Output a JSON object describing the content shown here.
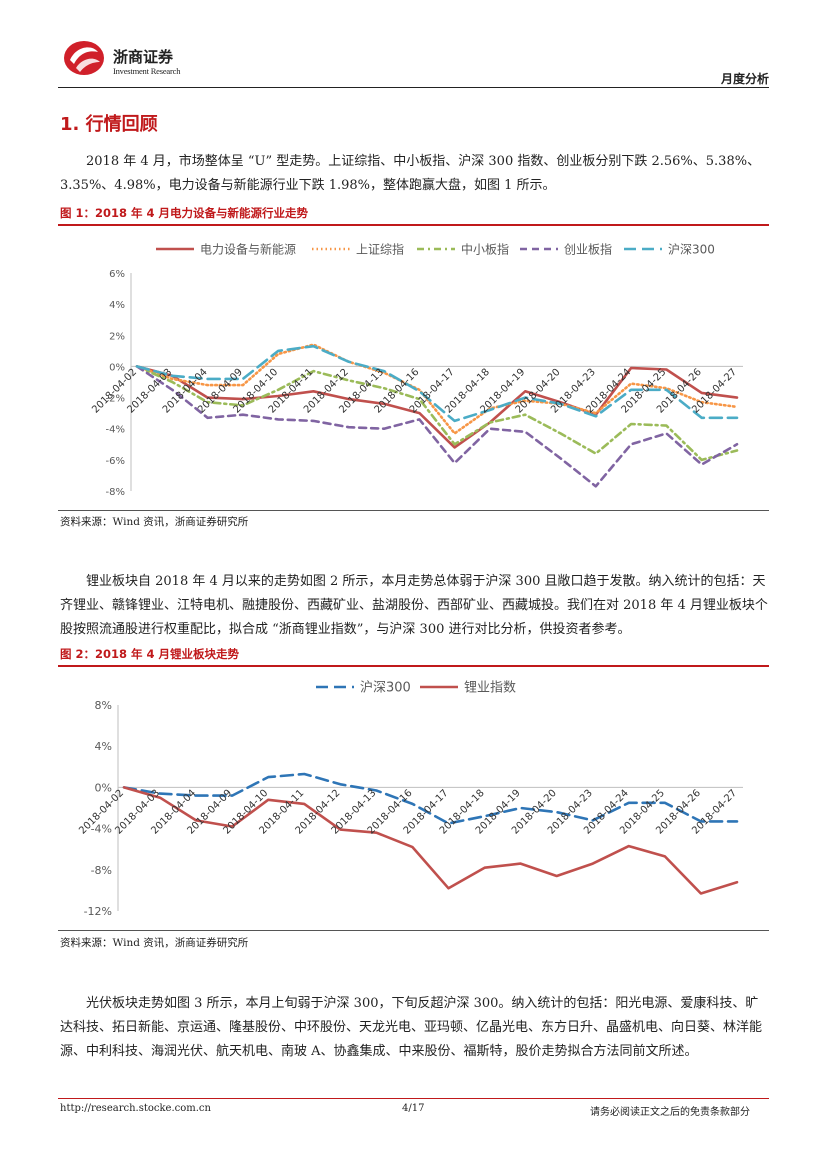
{
  "header": {
    "brand_cn": "浙商证券",
    "brand_en": "Investment Research",
    "report_type": "月度分析"
  },
  "section": {
    "title": "1. 行情回顾"
  },
  "paragraphs": {
    "p1": "2018 年 4 月，市场整体呈 “U” 型走势。上证综指、中小板指、沪深 300 指数、创业板分别下跌 2.56%、5.38%、3.35%、4.98%，电力设备与新能源行业下跌 1.98%，整体跑赢大盘，如图 1 所示。",
    "p2": "锂业板块自 2018 年 4 月以来的走势如图 2 所示，本月走势总体弱于沪深 300 且敞口趋于发散。纳入统计的包括：天齐锂业、赣锋锂业、江特电机、融捷股份、西藏矿业、盐湖股份、西部矿业、西藏城投。我们在对 2018 年 4 月锂业板块个股按照流通股进行权重配比，拟合成 “浙商锂业指数”，与沪深 300 进行对比分析，供投资者参考。",
    "p3": "光伏板块走势如图 3 所示，本月上旬弱于沪深 300，下旬反超沪深 300。纳入统计的包括：阳光电源、爱康科技、旷达科技、拓日新能、京运通、隆基股份、中环股份、天龙光电、亚玛顿、亿晶光电、东方日升、晶盛机电、向日葵、林洋能源、中利科技、海润光伏、航天机电、南玻 A、协鑫集成、中来股份、福斯特，股价走势拟合方法同前文所述。"
  },
  "figures": {
    "fig1": {
      "title": "图 1：2018 年 4 月电力设备与新能源行业走势",
      "source": "资料来源：Wind 资讯，浙商证券研究所"
    },
    "fig2": {
      "title": "图 2：2018 年 4 月锂业板块走势",
      "source": "资料来源：Wind 资讯，浙商证券研究所"
    }
  },
  "chart_data": [
    {
      "type": "line",
      "x": [
        "2018-04-02",
        "2018-04-03",
        "2018-04-04",
        "2018-04-09",
        "2018-04-10",
        "2018-04-11",
        "2018-04-12",
        "2018-04-13",
        "2018-04-16",
        "2018-04-17",
        "2018-04-18",
        "2018-04-19",
        "2018-04-20",
        "2018-04-23",
        "2018-04-24",
        "2018-04-25",
        "2018-04-26",
        "2018-04-27"
      ],
      "y_ticks": [
        "6%",
        "4%",
        "2%",
        "0%",
        "-2%",
        "-4%",
        "-6%",
        "-8%"
      ],
      "ylim": [
        -8,
        6
      ],
      "grid": false,
      "legend": "top",
      "series": [
        {
          "name": "电力设备与新能源",
          "color": "#c0504d",
          "dash": "solid",
          "values": [
            0,
            -0.6,
            -2.0,
            -2.1,
            -1.9,
            -1.6,
            -2.1,
            -2.4,
            -3.0,
            -5.2,
            -3.6,
            -1.6,
            -2.3,
            -3.1,
            -0.1,
            -0.2,
            -1.7,
            -2.0
          ]
        },
        {
          "name": "上证综指",
          "color": "#f79646",
          "dash": "dot",
          "values": [
            0,
            -0.8,
            -1.2,
            -1.2,
            0.8,
            1.4,
            0.3,
            -0.4,
            -1.5,
            -4.3,
            -2.7,
            -2.2,
            -2.4,
            -3.0,
            -1.1,
            -1.4,
            -2.3,
            -2.6
          ]
        },
        {
          "name": "中小板指",
          "color": "#9bbb59",
          "dash": "dashdot",
          "values": [
            0,
            -1.0,
            -2.3,
            -2.5,
            -1.5,
            -0.3,
            -0.9,
            -1.4,
            -2.1,
            -5.0,
            -3.6,
            -3.1,
            -4.3,
            -5.6,
            -3.7,
            -3.8,
            -6.0,
            -5.4
          ]
        },
        {
          "name": "创业板指",
          "color": "#8064a2",
          "dash": "dash",
          "values": [
            0,
            -1.5,
            -3.3,
            -3.1,
            -3.4,
            -3.5,
            -3.9,
            -4.0,
            -3.4,
            -6.2,
            -4.0,
            -4.2,
            -5.9,
            -7.7,
            -5.0,
            -4.3,
            -6.3,
            -5.0
          ]
        },
        {
          "name": "沪深300",
          "color": "#4bacc6",
          "dash": "longdash",
          "values": [
            0,
            -0.6,
            -0.8,
            -0.8,
            1.0,
            1.3,
            0.3,
            -0.3,
            -1.6,
            -3.5,
            -2.8,
            -2.0,
            -2.4,
            -3.2,
            -1.5,
            -1.5,
            -3.3,
            -3.3
          ]
        }
      ]
    },
    {
      "type": "line",
      "x": [
        "2018-04-02",
        "2018-04-03",
        "2018-04-04",
        "2018-04-09",
        "2018-04-10",
        "2018-04-11",
        "2018-04-12",
        "2018-04-13",
        "2018-04-16",
        "2018-04-17",
        "2018-04-18",
        "2018-04-19",
        "2018-04-20",
        "2018-04-23",
        "2018-04-24",
        "2018-04-25",
        "2018-04-26",
        "2018-04-27"
      ],
      "y_ticks": [
        "8%",
        "4%",
        "0%",
        "-4%",
        "-8%",
        "-12%"
      ],
      "ylim": [
        -12,
        8
      ],
      "grid": false,
      "legend": "top",
      "series": [
        {
          "name": "沪深300",
          "color": "#2e75b6",
          "dash": "longdash",
          "values": [
            0,
            -0.6,
            -0.8,
            -0.8,
            1.0,
            1.3,
            0.3,
            -0.3,
            -1.6,
            -3.5,
            -2.8,
            -2.0,
            -2.4,
            -3.2,
            -1.5,
            -1.5,
            -3.3,
            -3.3
          ]
        },
        {
          "name": "锂业指数",
          "color": "#c0504d",
          "dash": "solid",
          "values": [
            0,
            -1.0,
            -3.2,
            -3.8,
            -1.2,
            -1.6,
            -4.1,
            -4.4,
            -5.8,
            -9.8,
            -7.8,
            -7.4,
            -8.6,
            -7.4,
            -5.7,
            -6.7,
            -10.3,
            -9.2
          ]
        }
      ]
    }
  ]
}
